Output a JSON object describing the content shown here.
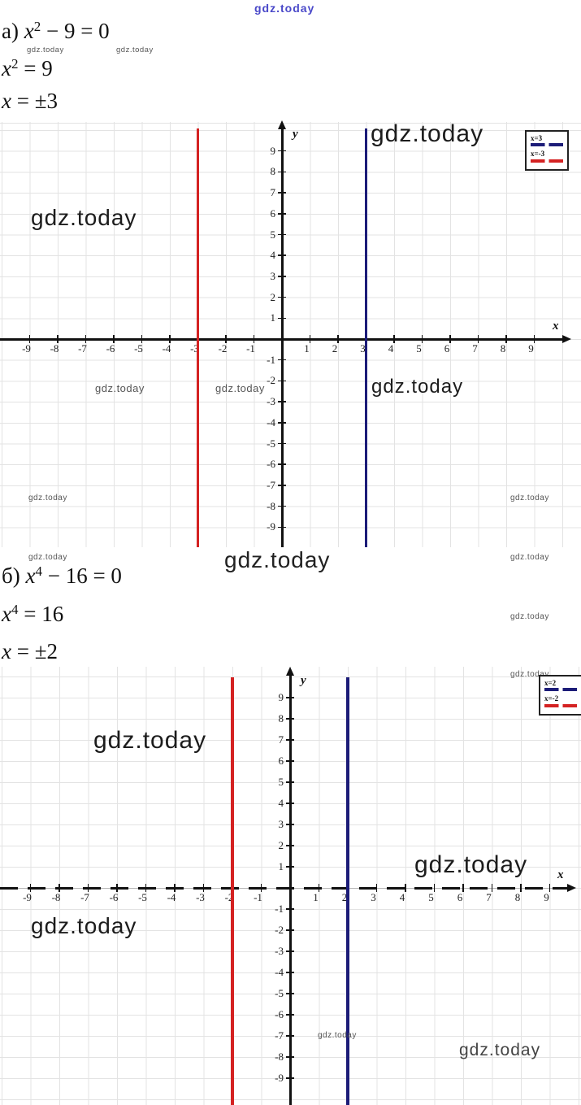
{
  "watermark": {
    "text": "gdz.today"
  },
  "solutions": {
    "a": {
      "label": "а)",
      "steps": [
        {
          "var": "x",
          "sup": "2",
          "rest": " − 9 = 0"
        },
        {
          "var": "x",
          "sup": "2",
          "rest": " = 9"
        },
        {
          "var": "x",
          "sup": "",
          "rest": " = ±3"
        }
      ]
    },
    "b": {
      "label": "б)",
      "steps": [
        {
          "var": "x",
          "sup": "4",
          "rest": " − 16 = 0"
        },
        {
          "var": "x",
          "sup": "4",
          "rest": " = 16"
        },
        {
          "var": "x",
          "sup": "",
          "rest": " = ±2"
        }
      ]
    }
  },
  "chart_data": [
    {
      "type": "line",
      "title": "",
      "xlabel": "x",
      "ylabel": "y",
      "xlim": [
        -10,
        10
      ],
      "ylim": [
        -10,
        10
      ],
      "grid": true,
      "legend_position": "top-right",
      "x_axis_style": "solid",
      "x_ticks": [
        -9,
        -8,
        -7,
        -6,
        -5,
        -4,
        -3,
        -2,
        -1,
        1,
        2,
        3,
        4,
        5,
        6,
        7,
        8,
        9
      ],
      "y_ticks": [
        9,
        8,
        7,
        6,
        5,
        4,
        3,
        2,
        1,
        -1,
        -2,
        -3,
        -4,
        -5,
        -6,
        -7,
        -8,
        -9
      ],
      "series": [
        {
          "name": "x=3",
          "color": "#1c1c78",
          "points": [
            [
              3,
              -10
            ],
            [
              3,
              10
            ]
          ]
        },
        {
          "name": "x=-3",
          "color": "#d42222",
          "points": [
            [
              -3,
              -10
            ],
            [
              -3,
              10
            ]
          ]
        }
      ]
    },
    {
      "type": "line",
      "title": "",
      "xlabel": "x",
      "ylabel": "y",
      "xlim": [
        -10,
        10
      ],
      "ylim": [
        -10,
        10
      ],
      "grid": true,
      "legend_position": "top-right",
      "x_axis_style": "dashed",
      "x_ticks": [
        -9,
        -8,
        -7,
        -6,
        -5,
        -4,
        -3,
        -2,
        -1,
        1,
        2,
        3,
        4,
        5,
        6,
        7,
        8,
        9
      ],
      "y_ticks": [
        9,
        8,
        7,
        6,
        5,
        4,
        3,
        2,
        1,
        -1,
        -2,
        -3,
        -4,
        -5,
        -6,
        -7,
        -8,
        -9
      ],
      "series": [
        {
          "name": "x=2",
          "color": "#1c1c78",
          "points": [
            [
              2,
              -10
            ],
            [
              2,
              10
            ]
          ]
        },
        {
          "name": "x=-2",
          "color": "#d42222",
          "points": [
            [
              -2,
              -10
            ],
            [
              -2,
              10
            ]
          ]
        }
      ]
    }
  ]
}
